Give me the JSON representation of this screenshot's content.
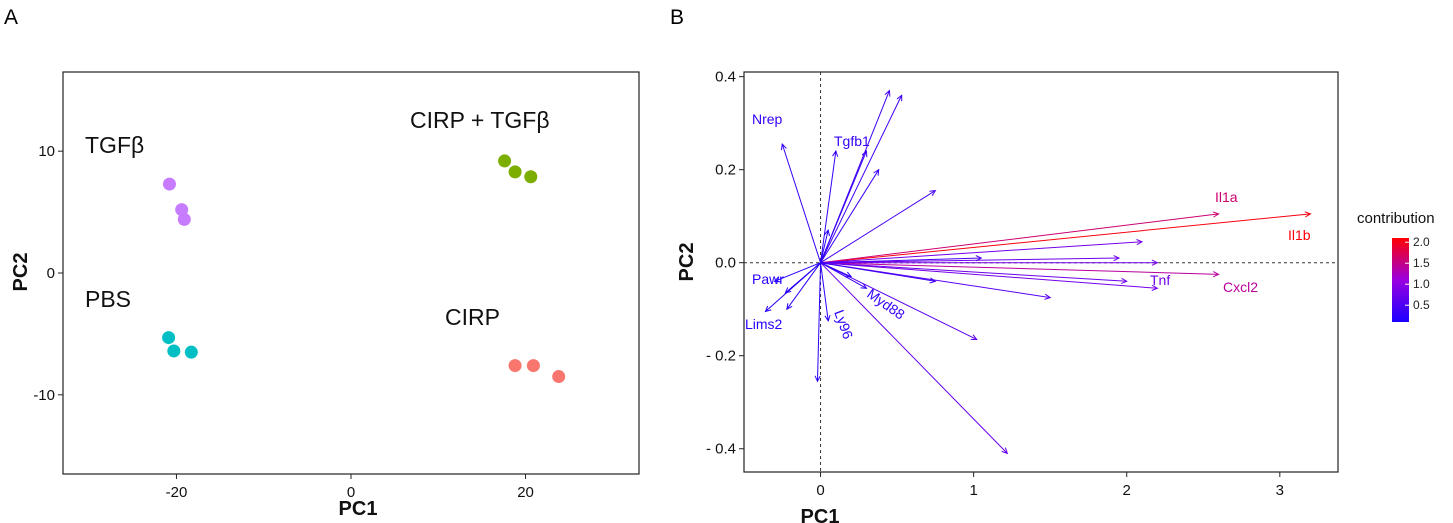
{
  "panel_a_letter": "A",
  "panel_b_letter": "B",
  "chart_data": [
    {
      "type": "scatter",
      "panel": "A",
      "xlabel": "PC1",
      "ylabel": "PC2",
      "xlim": [
        -33,
        33
      ],
      "ylim": [
        -16.5,
        16.5
      ],
      "xticks": [
        -20,
        0,
        20
      ],
      "xtick_labels": [
        "-20",
        "0",
        "20"
      ],
      "yticks": [
        10,
        0,
        -10
      ],
      "ytick_labels": [
        "10",
        "0",
        "-10"
      ],
      "series": [
        {
          "name": "TGFβ",
          "color": "#c77cff",
          "points": [
            [
              -20.8,
              7.3
            ],
            [
              -19.4,
              5.2
            ],
            [
              -19.1,
              4.4
            ]
          ]
        },
        {
          "name": "CIRP + TGFβ",
          "color": "#7cae00",
          "points": [
            [
              17.6,
              9.2
            ],
            [
              18.8,
              8.3
            ],
            [
              20.6,
              7.9
            ]
          ]
        },
        {
          "name": "PBS",
          "color": "#00bfc4",
          "points": [
            [
              -20.9,
              -5.3
            ],
            [
              -20.3,
              -6.4
            ],
            [
              -18.3,
              -6.5
            ]
          ]
        },
        {
          "name": "CIRP",
          "color": "#f8766d",
          "points": [
            [
              18.8,
              -7.6
            ],
            [
              20.9,
              -7.6
            ],
            [
              23.8,
              -8.5
            ]
          ]
        }
      ]
    },
    {
      "type": "biplot",
      "panel": "B",
      "xlabel": "PC1",
      "ylabel": "PC2",
      "xlim": [
        -0.5,
        3.38
      ],
      "ylim": [
        -0.45,
        0.41
      ],
      "xticks": [
        0,
        1,
        2,
        3
      ],
      "xtick_labels": [
        "0",
        "1",
        "2",
        "3"
      ],
      "yticks": [
        0.4,
        0.2,
        0.0,
        -0.2,
        -0.4
      ],
      "ytick_labels": [
        "0.4",
        "0.2",
        "0.0",
        "- 0.2",
        "- 0.4"
      ],
      "legend": {
        "title": "contribution",
        "ticks": [
          2.0,
          1.5,
          1.0,
          0.5
        ],
        "tick_labels": [
          "2.0",
          "1.5",
          "1.0",
          "0.5"
        ],
        "range": [
          0.1,
          2.1
        ],
        "low_color": "#1a00ff",
        "high_color": "#ff0000"
      },
      "vectors": [
        {
          "name": "Il1b",
          "x": 3.2,
          "y": 0.105,
          "contribution": 2.05,
          "show_label": true
        },
        {
          "name": "Il1a",
          "x": 2.6,
          "y": 0.105,
          "contribution": 1.6,
          "show_label": true
        },
        {
          "name": "Cxcl2",
          "x": 2.6,
          "y": -0.025,
          "contribution": 1.4,
          "show_label": true
        },
        {
          "name": "Tnf",
          "x": 2.2,
          "y": -0.055,
          "contribution": 0.8,
          "show_label": true
        },
        {
          "name": "Nrep",
          "x": -0.25,
          "y": 0.255,
          "contribution": 0.3,
          "show_label": true
        },
        {
          "name": "Tgfb1",
          "x": 0.1,
          "y": 0.24,
          "contribution": 0.3,
          "show_label": true
        },
        {
          "name": "Pawr",
          "x": -0.23,
          "y": -0.065,
          "contribution": 0.2,
          "show_label": true
        },
        {
          "name": "Lims2",
          "x": -0.36,
          "y": -0.105,
          "contribution": 0.2,
          "show_label": true
        },
        {
          "name": "Ly96",
          "x": 0.05,
          "y": -0.125,
          "contribution": 0.2,
          "show_label": true
        },
        {
          "name": "Myd88",
          "x": 0.3,
          "y": -0.055,
          "contribution": 0.3,
          "show_label": true
        },
        {
          "name": "",
          "x": 0.45,
          "y": 0.37,
          "contribution": 0.4,
          "show_label": false
        },
        {
          "name": "",
          "x": 0.53,
          "y": 0.36,
          "contribution": 0.4,
          "show_label": false
        },
        {
          "name": "",
          "x": 0.3,
          "y": 0.24,
          "contribution": 0.35,
          "show_label": false
        },
        {
          "name": "",
          "x": 0.38,
          "y": 0.2,
          "contribution": 0.35,
          "show_label": false
        },
        {
          "name": "",
          "x": 0.75,
          "y": 0.155,
          "contribution": 0.45,
          "show_label": false
        },
        {
          "name": "",
          "x": 2.1,
          "y": 0.045,
          "contribution": 0.8,
          "show_label": false
        },
        {
          "name": "",
          "x": 1.95,
          "y": 0.01,
          "contribution": 0.75,
          "show_label": false
        },
        {
          "name": "",
          "x": 2.2,
          "y": 0.0,
          "contribution": 0.8,
          "show_label": false
        },
        {
          "name": "",
          "x": 1.05,
          "y": 0.01,
          "contribution": 0.5,
          "show_label": false
        },
        {
          "name": "",
          "x": 2.0,
          "y": -0.04,
          "contribution": 0.75,
          "show_label": false
        },
        {
          "name": "",
          "x": 1.5,
          "y": -0.075,
          "contribution": 0.6,
          "show_label": false
        },
        {
          "name": "",
          "x": 1.02,
          "y": -0.165,
          "contribution": 0.6,
          "show_label": false
        },
        {
          "name": "",
          "x": 1.22,
          "y": -0.41,
          "contribution": 0.7,
          "show_label": false
        },
        {
          "name": "",
          "x": 0.75,
          "y": -0.04,
          "contribution": 0.4,
          "show_label": false
        },
        {
          "name": "",
          "x": 0.05,
          "y": 0.07,
          "contribution": 0.15,
          "show_label": false
        },
        {
          "name": "",
          "x": -0.02,
          "y": -0.255,
          "contribution": 0.25,
          "show_label": false
        },
        {
          "name": "",
          "x": -0.22,
          "y": -0.1,
          "contribution": 0.2,
          "show_label": false
        },
        {
          "name": "",
          "x": -0.3,
          "y": -0.04,
          "contribution": 0.15,
          "show_label": false
        },
        {
          "name": "",
          "x": 0.2,
          "y": -0.03,
          "contribution": 0.2,
          "show_label": false
        }
      ]
    }
  ]
}
